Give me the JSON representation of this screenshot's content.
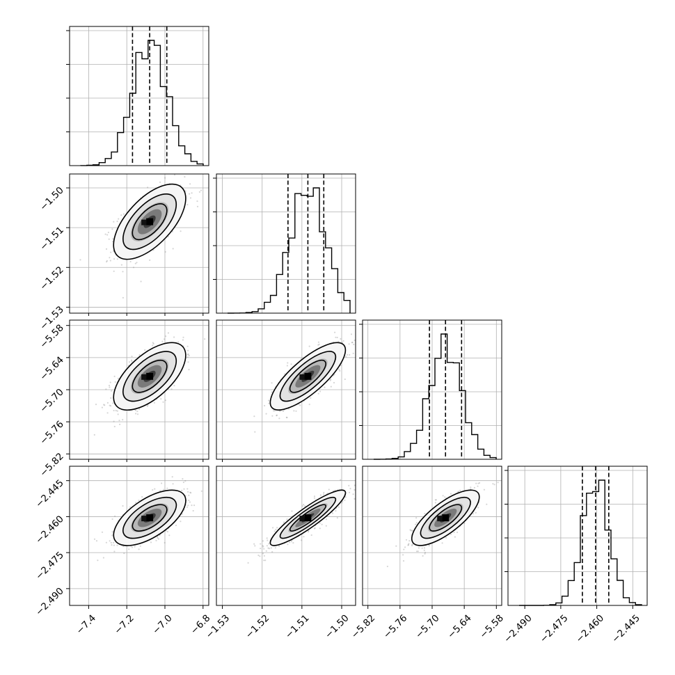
{
  "chart_data": {
    "type": "corner",
    "parameters": [
      {
        "ticks": [
          -7.4,
          -7.2,
          -7.0,
          -6.8
        ],
        "tick_labels": [
          "−7.4",
          "−7.2",
          "−7.0",
          "−6.8"
        ],
        "range": [
          -7.5,
          -6.77
        ],
        "median": -7.08,
        "q16": -7.17,
        "q84": -6.99,
        "sigma": 0.09
      },
      {
        "ticks": [
          -1.53,
          -1.52,
          -1.51,
          -1.5
        ],
        "tick_labels": [
          "−1.53",
          "−1.52",
          "−1.51",
          "−1.50"
        ],
        "range": [
          -1.5315,
          -1.4965
        ],
        "median": -1.5085,
        "q16": -1.5135,
        "q84": -1.5045,
        "sigma": 0.0045
      },
      {
        "ticks": [
          -5.82,
          -5.76,
          -5.7,
          -5.64,
          -5.58
        ],
        "tick_labels": [
          "−5.82",
          "−5.76",
          "−5.70",
          "−5.64",
          "−5.58"
        ],
        "range": [
          -5.83,
          -5.57
        ],
        "median": -5.675,
        "q16": -5.705,
        "q84": -5.645,
        "sigma": 0.03
      },
      {
        "ticks": [
          -2.49,
          -2.475,
          -2.46,
          -2.445
        ],
        "tick_labels": [
          "−2.490",
          "−2.475",
          "−2.460",
          "−2.445"
        ],
        "range": [
          -2.497,
          -2.439
        ],
        "median": -2.4605,
        "q16": -2.466,
        "q84": -2.455,
        "sigma": 0.0055
      }
    ],
    "correlations": {
      "1-0": 0.62,
      "2-0": 0.62,
      "2-1": 0.78,
      "3-0": 0.62,
      "3-1": 0.9,
      "3-2": 0.75
    },
    "grid": true,
    "quantile_lines": true
  }
}
